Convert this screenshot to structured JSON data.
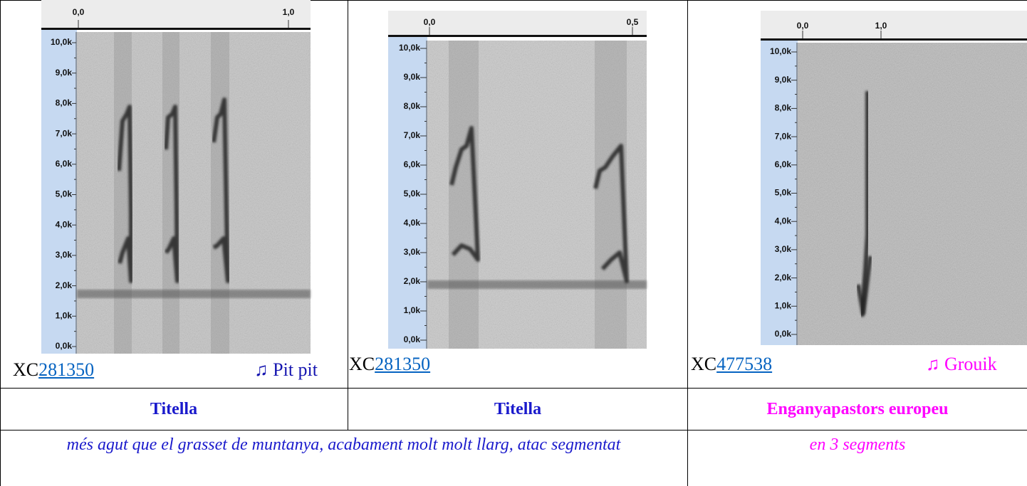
{
  "cells": [
    {
      "spectrogram": {
        "time_labels": [
          "0,0",
          "1,0"
        ],
        "freq_labels": [
          "10,0k",
          "9,0k",
          "8,0k",
          "7,0k",
          "6,0k",
          "5,0k",
          "4,0k",
          "3,0k",
          "2,0k",
          "1,0k",
          "0,0k"
        ]
      },
      "xc_prefix": "XC",
      "xc_number": "281350",
      "note": "♫ Pit pit"
    },
    {
      "spectrogram": {
        "time_labels": [
          "0,0",
          "0,5"
        ],
        "freq_labels": [
          "10,0k",
          "9,0k",
          "8,0k",
          "7,0k",
          "6,0k",
          "5,0k",
          "4,0k",
          "3,0k",
          "2,0k",
          "1,0k",
          "0,0k"
        ]
      },
      "xc_prefix": "XC",
      "xc_number": "281350"
    },
    {
      "spectrogram": {
        "time_labels": [
          "0,0",
          "1,0"
        ],
        "freq_labels": [
          "10,0k",
          "9,0k",
          "8,0k",
          "7,0k",
          "6,0k",
          "5,0k",
          "4,0k",
          "3,0k",
          "2,0k",
          "1,0k",
          "0,0k"
        ]
      },
      "xc_prefix": "XC",
      "xc_number": "477538",
      "note": "♫ Grouik"
    }
  ],
  "names": [
    "Titella",
    "Titella",
    "Enganyapastors europeu"
  ],
  "descriptions": [
    "més agut que el grasset de muntanya, acabament molt molt llarg, atac segmentat",
    "en 3 segments"
  ]
}
